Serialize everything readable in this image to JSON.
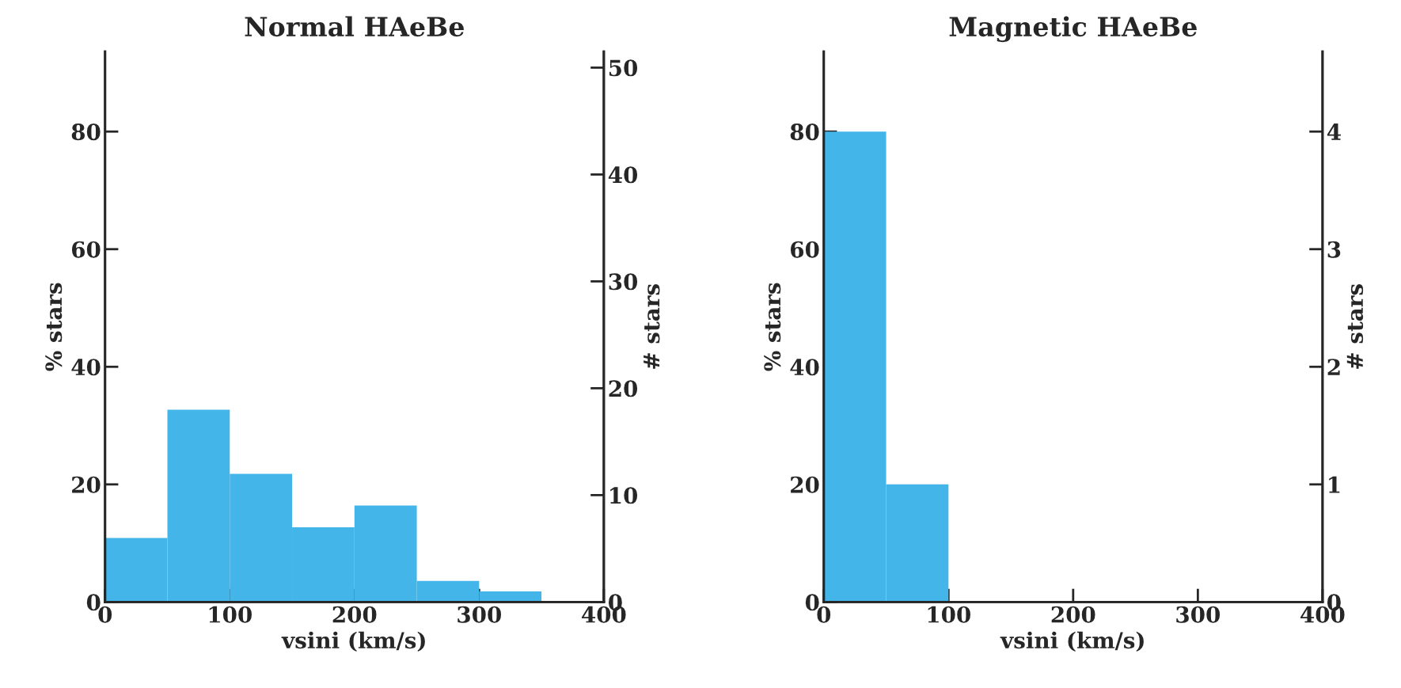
{
  "chart_data": [
    {
      "type": "histogram",
      "title": "Normal HAeBe",
      "xlabel": "vsini (km/s)",
      "ylabel": "% stars",
      "y2label": "# stars",
      "bins": [
        0,
        50,
        100,
        150,
        200,
        250,
        300,
        350
      ],
      "values": [
        10.9,
        32.7,
        21.8,
        12.7,
        16.4,
        3.6,
        1.8
      ],
      "color": "#44b5e8",
      "xlim": [
        0,
        400
      ],
      "xticks": [
        0,
        100,
        200,
        300,
        400
      ],
      "ylim": [
        0,
        93.6
      ],
      "yticks": [
        0,
        20,
        40,
        60,
        80
      ],
      "y2lim": [
        0,
        51.5
      ],
      "y2ticks": [
        0,
        10,
        20,
        30,
        40,
        50
      ],
      "grid": false,
      "legend": false
    },
    {
      "type": "histogram",
      "title": "Magnetic HAeBe",
      "xlabel": "vsini (km/s)",
      "ylabel": "% stars",
      "y2label": "# stars",
      "bins": [
        0,
        50,
        100
      ],
      "values": [
        80,
        20
      ],
      "color": "#44b5e8",
      "xlim": [
        0,
        400
      ],
      "xticks": [
        0,
        100,
        200,
        300,
        400
      ],
      "ylim": [
        0,
        93.6
      ],
      "yticks": [
        0,
        20,
        40,
        60,
        80
      ],
      "y2lim": [
        0,
        4.68
      ],
      "y2ticks": [
        0,
        1,
        2,
        3,
        4
      ],
      "grid": false,
      "legend": false
    }
  ]
}
